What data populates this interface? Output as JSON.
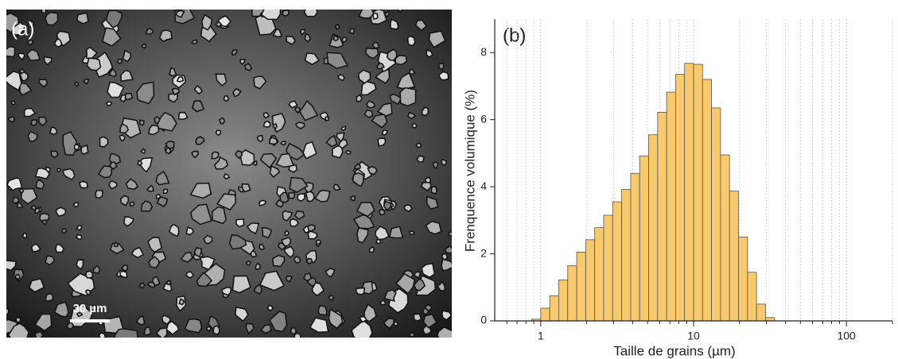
{
  "panel_a": {
    "label": "(a)",
    "scale_bar": "30 µm"
  },
  "chart_data": {
    "type": "histogram",
    "panel_label": "(b)",
    "x_label": "Taille de grains (µm)",
    "y_label": "Frenquence volumique (%)",
    "bins": [
      0.873,
      1,
      1.145,
      1.311,
      1.501,
      1.719,
      1.968,
      2.254,
      2.581,
      2.955,
      3.384,
      3.875,
      4.437,
      5.081,
      5.818,
      6.661,
      7.627,
      8.733,
      10,
      11.45,
      13.11,
      15.01,
      17.19,
      19.68,
      22.54,
      25.81,
      29.55,
      33.84
    ],
    "values": [
      0.05,
      0.38,
      0.75,
      1.22,
      1.65,
      2.05,
      2.42,
      2.78,
      3.15,
      3.55,
      3.92,
      4.4,
      4.92,
      5.55,
      6.22,
      6.82,
      7.35,
      7.68,
      7.65,
      7.2,
      6.35,
      4.95,
      3.87,
      2.5,
      1.45,
      0.5,
      0.1
    ],
    "color": "#f9c96e",
    "edge_color": "#555555",
    "xscale": "log",
    "xlim": [
      0.5,
      200
    ],
    "xticks": [
      1,
      10,
      100
    ],
    "xminorticks": [
      0.6,
      0.7,
      0.8,
      0.9,
      2,
      3,
      4,
      5,
      6,
      7,
      8,
      9,
      20,
      30,
      40,
      50,
      60,
      70,
      80,
      90,
      200
    ],
    "ylim": [
      0,
      9
    ],
    "yticks": [
      0,
      2,
      4,
      6,
      8
    ],
    "grid": true
  }
}
